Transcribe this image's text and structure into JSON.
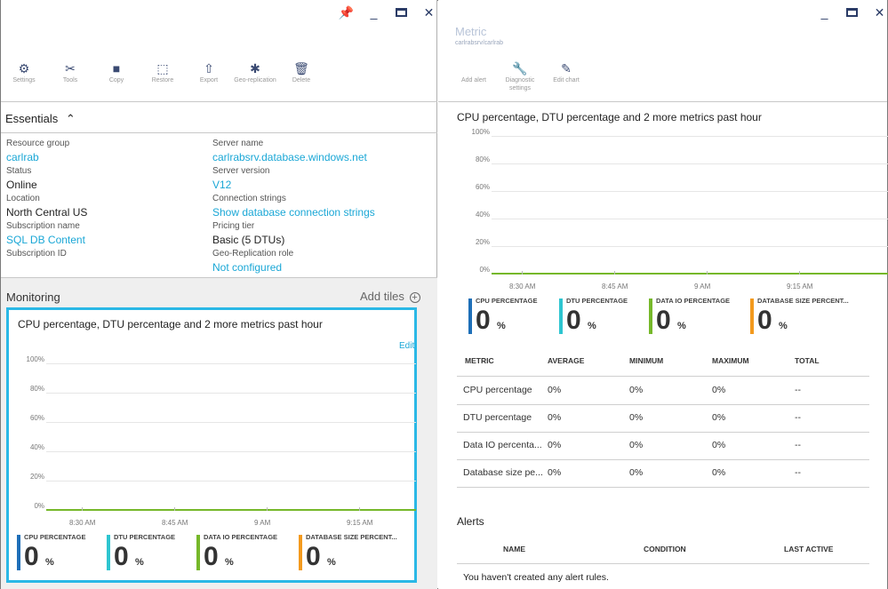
{
  "left_blade": {
    "commands": [
      {
        "icon": "gear-icon",
        "glyph": "⚙",
        "label": "Settings"
      },
      {
        "icon": "tools-icon",
        "glyph": "✂",
        "label": "Tools"
      },
      {
        "icon": "copy-icon",
        "glyph": "■",
        "label": "Copy"
      },
      {
        "icon": "restore-icon",
        "glyph": "⬚",
        "label": "Restore"
      },
      {
        "icon": "export-icon",
        "glyph": "⇧",
        "label": "Export"
      },
      {
        "icon": "geo-replication-icon",
        "glyph": "✱",
        "label": "Geo-replication"
      },
      {
        "icon": "delete-icon",
        "glyph": "🗑",
        "label": "Delete"
      }
    ],
    "essentials_title": "Essentials",
    "essentials_left": [
      {
        "label": "Resource group",
        "value": "carlrab",
        "link": true
      },
      {
        "label": "Status",
        "value": "Online",
        "link": false
      },
      {
        "label": "Location",
        "value": "North Central US",
        "link": false
      },
      {
        "label": "Subscription name",
        "value": "SQL DB Content",
        "link": true
      },
      {
        "label": "Subscription ID",
        "value": "",
        "link": false
      }
    ],
    "essentials_right": [
      {
        "label": "Server name",
        "value": "carlrabsrv.database.windows.net",
        "link": true
      },
      {
        "label": "Server version",
        "value": "V12",
        "link": true
      },
      {
        "label": "Connection strings",
        "value": "Show database connection strings",
        "link": true
      },
      {
        "label": "Pricing tier",
        "value": "Basic (5 DTUs)",
        "link": false
      },
      {
        "label": "Geo-Replication role",
        "value": "Not configured",
        "link": true
      }
    ],
    "monitoring_title": "Monitoring",
    "add_tiles": "Add tiles",
    "tile": {
      "title": "CPU percentage, DTU percentage and 2 more metrics past hour",
      "edit": "Edit"
    }
  },
  "right_blade": {
    "title": "Metric",
    "subtitle": "carlrabsrv/carlrab",
    "commands": [
      {
        "icon": "add-alert-icon",
        "glyph": "",
        "label": "Add alert"
      },
      {
        "icon": "wrench-icon",
        "glyph": "🔧",
        "label": "Diagnostic settings"
      },
      {
        "icon": "edit-chart-icon",
        "glyph": "✎",
        "label": "Edit chart"
      }
    ],
    "chart_title": "CPU percentage, DTU percentage and 2 more metrics past hour",
    "metrics_table": {
      "headers": [
        "METRIC",
        "AVERAGE",
        "MINIMUM",
        "MAXIMUM",
        "TOTAL"
      ],
      "rows": [
        [
          "CPU percentage",
          "0%",
          "0%",
          "0%",
          "--"
        ],
        [
          "DTU percentage",
          "0%",
          "0%",
          "0%",
          "--"
        ],
        [
          "Data IO percenta...",
          "0%",
          "0%",
          "0%",
          "--"
        ],
        [
          "Database size pe...",
          "0%",
          "0%",
          "0%",
          "--"
        ]
      ]
    },
    "alerts_title": "Alerts",
    "alerts_headers": [
      "NAME",
      "CONDITION",
      "LAST ACTIVE"
    ],
    "alerts_empty": "You haven't created any alert rules."
  },
  "kpis": [
    {
      "name": "CPU PERCENTAGE",
      "value": "0",
      "unit": "%",
      "color": "#1e6fb8"
    },
    {
      "name": "DTU PERCENTAGE",
      "value": "0",
      "unit": "%",
      "color": "#2ec5d0"
    },
    {
      "name": "DATA IO PERCENTAGE",
      "value": "0",
      "unit": "%",
      "color": "#76b82a"
    },
    {
      "name": "DATABASE SIZE PERCENT...",
      "value": "0",
      "unit": "%",
      "color": "#f39a1e"
    }
  ],
  "colors": {
    "accent": "#1aa7d6",
    "tile_border": "#2ab8e6",
    "series_line": "#76b82a"
  },
  "chart_data": {
    "type": "line",
    "x": [
      "8:30 AM",
      "8:45 AM",
      "9 AM",
      "9:15 AM"
    ],
    "ytick_labels": [
      "100%",
      "80%",
      "60%",
      "40%",
      "20%",
      "0%"
    ],
    "ylim": [
      0,
      100
    ],
    "series": [
      {
        "name": "CPU PERCENTAGE",
        "values": [
          0,
          0,
          0,
          0
        ]
      },
      {
        "name": "DTU PERCENTAGE",
        "values": [
          0,
          0,
          0,
          0
        ]
      },
      {
        "name": "DATA IO PERCENTAGE",
        "values": [
          0,
          0,
          0,
          0
        ]
      },
      {
        "name": "DATABASE SIZE PERCENT...",
        "values": [
          0,
          0,
          0,
          0
        ]
      }
    ]
  }
}
